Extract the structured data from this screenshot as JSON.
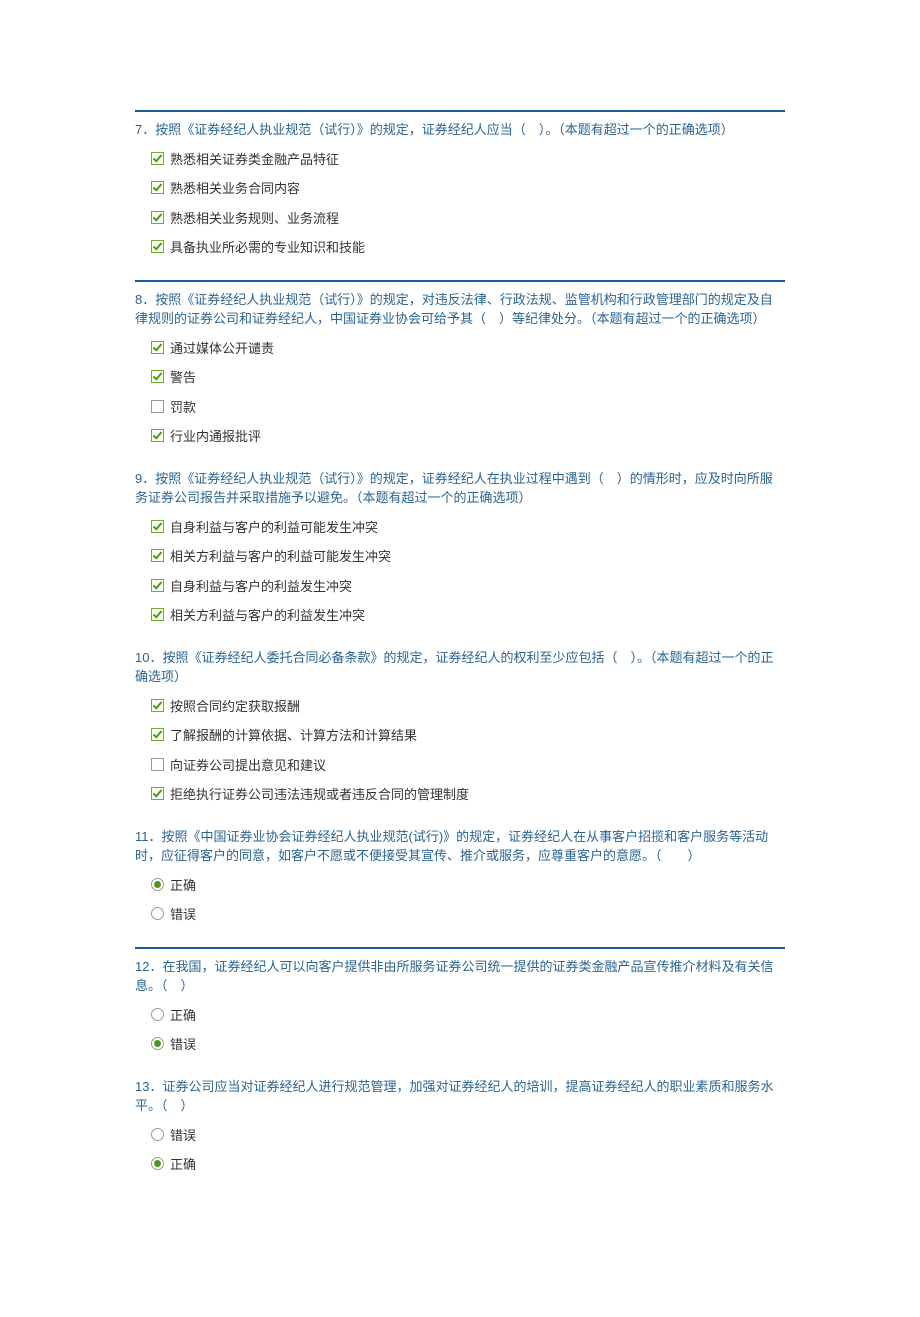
{
  "colors": {
    "divider": "#1b5a9c",
    "question_text": "#2a6496",
    "option_text": "#333333",
    "check_border": "#6cae2e",
    "check_mark": "#4a9a1a",
    "check_bg": "#fafff0",
    "bg": "#ffffff"
  },
  "typography": {
    "font_family": "Microsoft YaHei, SimSun, Arial, sans-serif",
    "font_size": 13,
    "line_height": 1.5
  },
  "questions": [
    {
      "id": "q7",
      "divider": true,
      "type": "checkbox",
      "text": "7．按照《证券经纪人执业规范（试行）》的规定，证券经纪人应当（　）。（本题有超过一个的正确选项）",
      "options": [
        {
          "label": "熟悉相关证券类金融产品特征",
          "checked": true
        },
        {
          "label": "熟悉相关业务合同内容",
          "checked": true
        },
        {
          "label": "熟悉相关业务规则、业务流程",
          "checked": true
        },
        {
          "label": "具备执业所必需的专业知识和技能",
          "checked": true
        }
      ]
    },
    {
      "id": "q8",
      "divider": true,
      "type": "checkbox",
      "text": "8．按照《证券经纪人执业规范（试行）》的规定，对违反法律、行政法规、监管机构和行政管理部门的规定及自律规则的证券公司和证券经纪人，中国证券业协会可给予其（　）等纪律处分。（本题有超过一个的正确选项）",
      "options": [
        {
          "label": "通过媒体公开谴责",
          "checked": true
        },
        {
          "label": "警告",
          "checked": true
        },
        {
          "label": "罚款",
          "checked": false
        },
        {
          "label": "行业内通报批评",
          "checked": true
        }
      ]
    },
    {
      "id": "q9",
      "divider": false,
      "type": "checkbox",
      "text": "9．按照《证券经纪人执业规范（试行）》的规定，证券经纪人在执业过程中遇到（　）的情形时，应及时向所服务证券公司报告并采取措施予以避免。（本题有超过一个的正确选项）",
      "options": [
        {
          "label": "自身利益与客户的利益可能发生冲突",
          "checked": true
        },
        {
          "label": "相关方利益与客户的利益可能发生冲突",
          "checked": true
        },
        {
          "label": "自身利益与客户的利益发生冲突",
          "checked": true
        },
        {
          "label": "相关方利益与客户的利益发生冲突",
          "checked": true
        }
      ]
    },
    {
      "id": "q10",
      "divider": false,
      "type": "checkbox",
      "text": "10．按照《证券经纪人委托合同必备条款》的规定，证券经纪人的权利至少应包括（　）。（本题有超过一个的正确选项）",
      "options": [
        {
          "label": "按照合同约定获取报酬",
          "checked": true
        },
        {
          "label": "了解报酬的计算依据、计算方法和计算结果",
          "checked": true
        },
        {
          "label": "向证券公司提出意见和建议",
          "checked": false
        },
        {
          "label": "拒绝执行证券公司违法违规或者违反合同的管理制度",
          "checked": true
        }
      ]
    },
    {
      "id": "q11",
      "divider": false,
      "type": "radio",
      "text": "11．按照《中国证券业协会证券经纪人执业规范(试行)》的规定，证券经纪人在从事客户招揽和客户服务等活动时，应征得客户的同意，如客户不愿或不便接受其宣传、推介或服务，应尊重客户的意愿。（　　）",
      "options": [
        {
          "label": "正确",
          "checked": true
        },
        {
          "label": "错误",
          "checked": false
        }
      ]
    },
    {
      "id": "q12",
      "divider": true,
      "type": "radio",
      "text": "12．在我国，证券经纪人可以向客户提供非由所服务证券公司统一提供的证券类金融产品宣传推介材料及有关信息。（　）",
      "options": [
        {
          "label": "正确",
          "checked": false
        },
        {
          "label": "错误",
          "checked": true
        }
      ]
    },
    {
      "id": "q13",
      "divider": false,
      "type": "radio",
      "text": "13．证券公司应当对证券经纪人进行规范管理，加强对证券经纪人的培训，提高证券经纪人的职业素质和服务水平。（　）",
      "options": [
        {
          "label": "错误",
          "checked": false
        },
        {
          "label": "正确",
          "checked": true
        }
      ]
    }
  ]
}
